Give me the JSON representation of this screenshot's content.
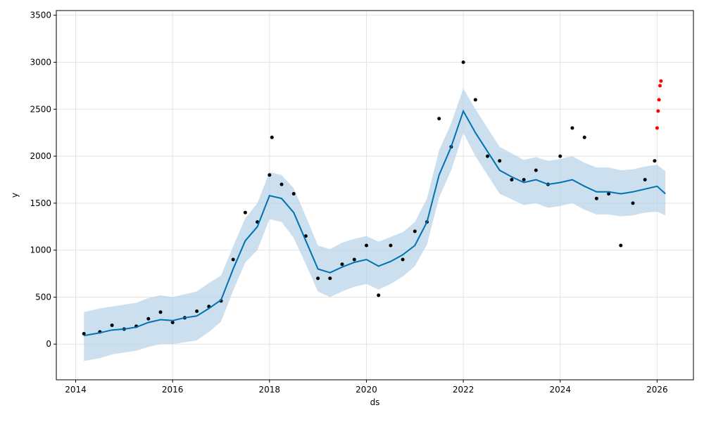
{
  "chart_data": {
    "type": "scatter",
    "title": "",
    "xlabel": "ds",
    "ylabel": "y",
    "xlim": [
      2013.6,
      2026.75
    ],
    "ylim": [
      -380,
      3550
    ],
    "x_ticks": [
      "2014",
      "2016",
      "2018",
      "2020",
      "2022",
      "2024",
      "2026"
    ],
    "y_ticks": [
      "0",
      "500",
      "1000",
      "1500",
      "2000",
      "2500",
      "3000",
      "3500"
    ],
    "grid": true,
    "legend": "none",
    "colors": {
      "observed": "#000000",
      "outliers": "#ff0000",
      "forecast_line": "#0072B2",
      "uncertainty_band": "#b9d4e8"
    },
    "forecast": {
      "x": [
        2014.17,
        2014.5,
        2014.75,
        2015.0,
        2015.25,
        2015.5,
        2015.75,
        2016.0,
        2016.25,
        2016.5,
        2016.75,
        2017.0,
        2017.25,
        2017.5,
        2017.75,
        2018.0,
        2018.25,
        2018.5,
        2018.75,
        2019.0,
        2019.25,
        2019.5,
        2019.75,
        2020.0,
        2020.25,
        2020.5,
        2020.75,
        2021.0,
        2021.25,
        2021.5,
        2021.75,
        2022.0,
        2022.25,
        2022.5,
        2022.75,
        2023.0,
        2023.25,
        2023.5,
        2023.75,
        2024.0,
        2024.25,
        2024.5,
        2024.75,
        2025.0,
        2025.25,
        2025.5,
        2025.75,
        2026.0,
        2026.17
      ],
      "yhat": [
        90,
        120,
        150,
        160,
        180,
        230,
        260,
        250,
        280,
        300,
        380,
        470,
        800,
        1100,
        1250,
        1580,
        1550,
        1400,
        1100,
        800,
        760,
        820,
        870,
        900,
        830,
        880,
        950,
        1050,
        1300,
        1800,
        2100,
        2480,
        2250,
        2050,
        1850,
        1780,
        1720,
        1750,
        1700,
        1720,
        1750,
        1680,
        1620,
        1620,
        1600,
        1620,
        1650,
        1680,
        1600
      ],
      "lower": [
        -180,
        -150,
        -110,
        -90,
        -70,
        -30,
        0,
        0,
        20,
        40,
        130,
        240,
        570,
        870,
        1000,
        1330,
        1300,
        1130,
        850,
        560,
        500,
        560,
        610,
        640,
        580,
        640,
        720,
        830,
        1060,
        1560,
        1850,
        2250,
        2000,
        1800,
        1600,
        1540,
        1480,
        1500,
        1450,
        1470,
        1500,
        1430,
        1380,
        1380,
        1360,
        1370,
        1400,
        1410,
        1370
      ],
      "upper": [
        340,
        380,
        400,
        420,
        440,
        490,
        520,
        500,
        530,
        560,
        650,
        730,
        1040,
        1340,
        1500,
        1830,
        1800,
        1660,
        1360,
        1050,
        1010,
        1080,
        1120,
        1150,
        1090,
        1140,
        1190,
        1300,
        1550,
        2060,
        2350,
        2720,
        2500,
        2300,
        2100,
        2030,
        1960,
        1990,
        1950,
        1970,
        2000,
        1930,
        1880,
        1880,
        1850,
        1860,
        1890,
        1910,
        1840
      ]
    },
    "observed": {
      "x": [
        2014.17,
        2014.5,
        2014.75,
        2015.0,
        2015.25,
        2015.5,
        2015.75,
        2016.0,
        2016.25,
        2016.5,
        2016.75,
        2017.0,
        2017.25,
        2017.5,
        2017.75,
        2018.0,
        2018.05,
        2018.25,
        2018.5,
        2018.75,
        2019.0,
        2019.25,
        2019.5,
        2019.75,
        2020.0,
        2020.25,
        2020.5,
        2020.75,
        2021.0,
        2021.25,
        2021.5,
        2021.75,
        2022.0,
        2022.25,
        2022.5,
        2022.75,
        2023.0,
        2023.25,
        2023.5,
        2023.75,
        2024.0,
        2024.25,
        2024.5,
        2024.75,
        2025.0,
        2025.25,
        2025.5,
        2025.75,
        2025.95
      ],
      "y": [
        110,
        130,
        200,
        160,
        190,
        270,
        340,
        230,
        280,
        350,
        400,
        460,
        900,
        1400,
        1300,
        1800,
        2200,
        1700,
        1600,
        1150,
        700,
        700,
        850,
        900,
        1050,
        520,
        1050,
        900,
        1200,
        1300,
        2400,
        2100,
        3000,
        2600,
        2000,
        1950,
        1750,
        1750,
        1850,
        1700,
        2000,
        2300,
        2200,
        1550,
        1600,
        1050,
        1500,
        1750,
        1950
      ]
    },
    "outliers": {
      "x": [
        2026.0,
        2026.02,
        2026.04,
        2026.06,
        2026.08
      ],
      "y": [
        2300,
        2480,
        2600,
        2750,
        2800
      ]
    }
  }
}
